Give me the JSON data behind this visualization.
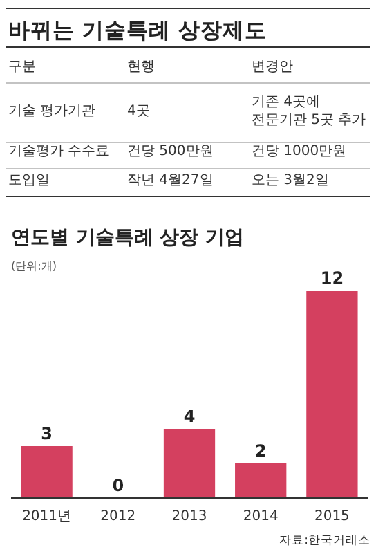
{
  "chart_data": [
    {
      "type": "other",
      "title": "바뀌는 기술특례 상장제도",
      "annotations": [
        "구분",
        "현행",
        "변경안",
        "기술 평가기관",
        "4곳",
        "기존 4곳에 전문기관 5곳 추가",
        "기술평가 수수료",
        "건당 500만원",
        "건당 1000만원",
        "도입일",
        "작년 4월27일",
        "오는 3월2일"
      ]
    },
    {
      "type": "bar",
      "title": "연도별 기술특례 상장 기업",
      "subtitle": "(단위:개)",
      "categories": [
        "2011년",
        "2012",
        "2013",
        "2014",
        "2015"
      ],
      "values": [
        3,
        0,
        4,
        2,
        12
      ],
      "color": "#d4405f",
      "data_labels": true,
      "annotations": [
        "자료:한국거래소"
      ]
    }
  ]
}
